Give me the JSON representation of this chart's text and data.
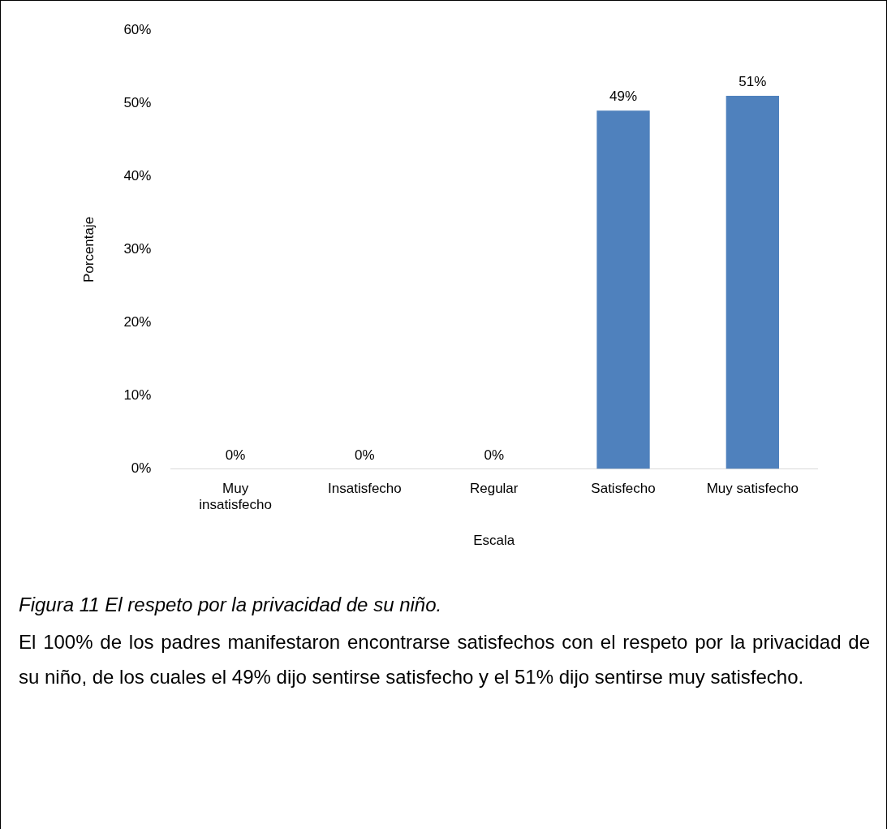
{
  "chart_data": {
    "type": "bar",
    "xlabel": "Escala",
    "ylabel": "Porcentaje",
    "categories": [
      "Muy insatisfecho",
      "Insatisfecho",
      "Regular",
      "Satisfecho",
      "Muy satisfecho"
    ],
    "values": [
      0,
      0,
      0,
      49,
      51
    ],
    "color": "#4f81bd",
    "value_labels": [
      "0%",
      "0%",
      "0%",
      "49%",
      "51%"
    ],
    "ylim": [
      0,
      60
    ],
    "yticks": [
      {
        "value": 0,
        "label": "0%"
      },
      {
        "value": 10,
        "label": "10%"
      },
      {
        "value": 20,
        "label": "20%"
      },
      {
        "value": 30,
        "label": "30%"
      },
      {
        "value": 40,
        "label": "40%"
      },
      {
        "value": 50,
        "label": "50%"
      },
      {
        "value": 60,
        "label": "60%"
      }
    ],
    "grid": false,
    "legend": false,
    "annotations": [
      "Figura 11 El respeto por la privacidad de su niño.",
      "El 100% de los padres manifestaron encontrarse satisfechos con el respeto por la privacidad de su niño, de los cuales el 49% dijo sentirse satisfecho y el 51% dijo sentirse muy satisfecho."
    ]
  }
}
